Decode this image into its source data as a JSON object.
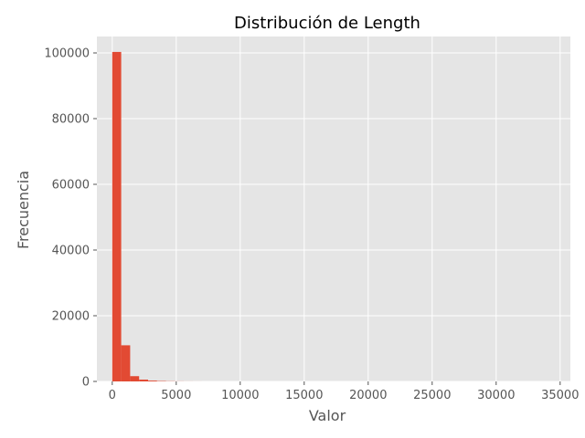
{
  "chart_data": {
    "type": "bar",
    "title": "Distribución de Length",
    "xlabel": "Valor",
    "ylabel": "Frecuencia",
    "xlim": [
      -1200,
      35800
    ],
    "ylim": [
      0,
      105000
    ],
    "x_ticks": [
      0,
      5000,
      10000,
      15000,
      20000,
      25000,
      30000,
      35000
    ],
    "y_ticks": [
      0,
      20000,
      40000,
      60000,
      80000,
      100000
    ],
    "grid": true,
    "bin_width": 700,
    "bins": [
      {
        "start": 0,
        "end": 700,
        "count": 100300
      },
      {
        "start": 700,
        "end": 1400,
        "count": 11000
      },
      {
        "start": 1400,
        "end": 2100,
        "count": 1600
      },
      {
        "start": 2100,
        "end": 2800,
        "count": 550
      },
      {
        "start": 2800,
        "end": 3500,
        "count": 250
      },
      {
        "start": 3500,
        "end": 4200,
        "count": 120
      },
      {
        "start": 4200,
        "end": 4900,
        "count": 60
      },
      {
        "start": 4900,
        "end": 5600,
        "count": 30
      },
      {
        "start": 5600,
        "end": 6300,
        "count": 15
      },
      {
        "start": 6300,
        "end": 7000,
        "count": 8
      }
    ],
    "colors": {
      "bar": "#E24A33",
      "plot_bg": "#E5E5E5",
      "grid": "#FFFFFF"
    }
  }
}
